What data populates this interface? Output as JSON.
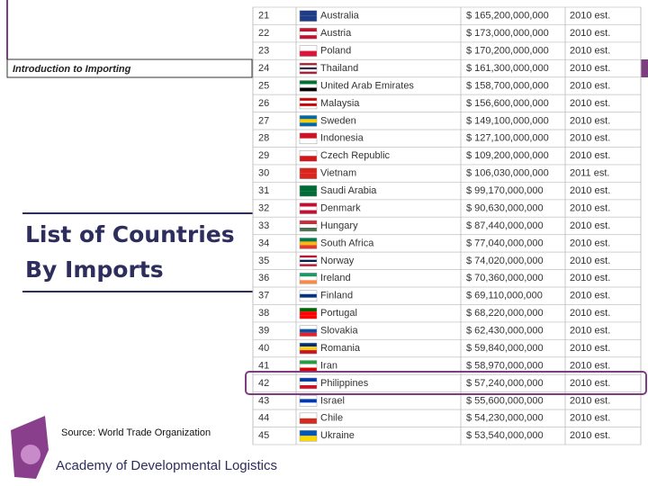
{
  "header": {
    "section": "Introduction to Importing",
    "title_lines": [
      "List of Countries",
      "By Imports"
    ],
    "source": "Source: World Trade Organization",
    "footer": "Academy of Developmental Logistics"
  },
  "table": {
    "rows": [
      [
        21,
        "Australia",
        "$ 165,200,000,000",
        "2010 est."
      ],
      [
        22,
        "Austria",
        "$ 173,000,000,000",
        "2010 est."
      ],
      [
        23,
        "Poland",
        "$ 170,200,000,000",
        "2010 est."
      ],
      [
        24,
        "Thailand",
        "$ 161,300,000,000",
        "2010 est."
      ],
      [
        25,
        "United Arab Emirates",
        "$ 158,700,000,000",
        "2010 est."
      ],
      [
        26,
        "Malaysia",
        "$ 156,600,000,000",
        "2010 est."
      ],
      [
        27,
        "Sweden",
        "$ 149,100,000,000",
        "2010 est."
      ],
      [
        28,
        "Indonesia",
        "$ 127,100,000,000",
        "2010 est."
      ],
      [
        29,
        "Czech Republic",
        "$ 109,200,000,000",
        "2010 est."
      ],
      [
        30,
        "Vietnam",
        "$ 106,030,000,000",
        "2011 est."
      ],
      [
        31,
        "Saudi Arabia",
        "$ 99,170,000,000",
        "2010 est."
      ],
      [
        32,
        "Denmark",
        "$ 90,630,000,000",
        "2010 est."
      ],
      [
        33,
        "Hungary",
        "$ 87,440,000,000",
        "2010 est."
      ],
      [
        34,
        "South Africa",
        "$ 77,040,000,000",
        "2010 est."
      ],
      [
        35,
        "Norway",
        "$ 74,020,000,000",
        "2010 est."
      ],
      [
        36,
        "Ireland",
        "$ 70,360,000,000",
        "2010 est."
      ],
      [
        37,
        "Finland",
        "$ 69,110,000,000",
        "2010 est."
      ],
      [
        38,
        "Portugal",
        "$ 68,220,000,000",
        "2010 est."
      ],
      [
        39,
        "Slovakia",
        "$ 62,430,000,000",
        "2010 est."
      ],
      [
        40,
        "Romania",
        "$ 59,840,000,000",
        "2010 est."
      ],
      [
        41,
        "Iran",
        "$ 58,970,000,000",
        "2010 est."
      ],
      [
        42,
        "Philippines",
        "$ 57,240,000,000",
        "2010 est."
      ],
      [
        43,
        "Israel",
        "$ 55,600,000,000",
        "2010 est."
      ],
      [
        44,
        "Chile",
        "$ 54,230,000,000",
        "2010 est."
      ],
      [
        45,
        "Ukraine",
        "$ 53,540,000,000",
        "2010 est."
      ]
    ]
  }
}
